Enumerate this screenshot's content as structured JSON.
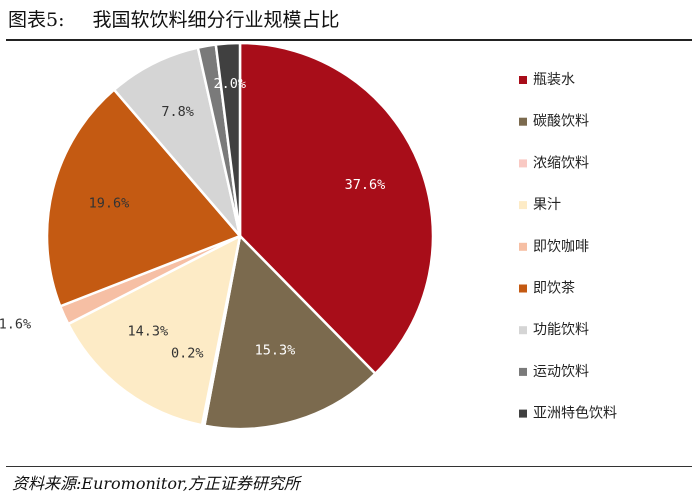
{
  "header": {
    "figure_number": "图表5:",
    "title": "我国软饮料细分行业规模占比"
  },
  "footer": {
    "source": "资料来源:Euromonitor,方正证券研究所"
  },
  "chart_data": {
    "type": "pie",
    "title": "我国软饮料细分行业规模占比",
    "start_angle_deg": 0,
    "direction": "clockwise",
    "legend_position": "right",
    "slices": [
      {
        "name": "瓶装水",
        "value": 37.6,
        "label": "37.6%",
        "color": "#a80d19",
        "label_color": "#ffffff"
      },
      {
        "name": "碳酸饮料",
        "value": 15.3,
        "label": "15.3%",
        "color": "#7b6a4e",
        "label_color": "#ffffff"
      },
      {
        "name": "浓缩饮料",
        "value": 0.2,
        "label": "0.2%",
        "color": "#f9c9c3",
        "label_color": "#333333"
      },
      {
        "name": "果汁",
        "value": 14.3,
        "label": "14.3%",
        "color": "#fdebc6",
        "label_color": "#333333"
      },
      {
        "name": "即饮咖啡",
        "value": 1.6,
        "label": "1.6%",
        "color": "#f6bfa4",
        "label_color": "#333333"
      },
      {
        "name": "即饮茶",
        "value": 19.6,
        "label": "19.6%",
        "color": "#c45a12",
        "label_color": "#333333"
      },
      {
        "name": "功能饮料",
        "value": 7.8,
        "label": "7.8%",
        "color": "#d5d5d5",
        "label_color": "#333333"
      },
      {
        "name": "运动饮料",
        "value": 1.5,
        "label": "1.5%",
        "color": "#7a7a7a",
        "label_color": "#333333"
      },
      {
        "name": "亚洲特色饮料",
        "value": 2.0,
        "label": "2.0%",
        "color": "#404040",
        "label_color": "#ffffff"
      }
    ]
  }
}
